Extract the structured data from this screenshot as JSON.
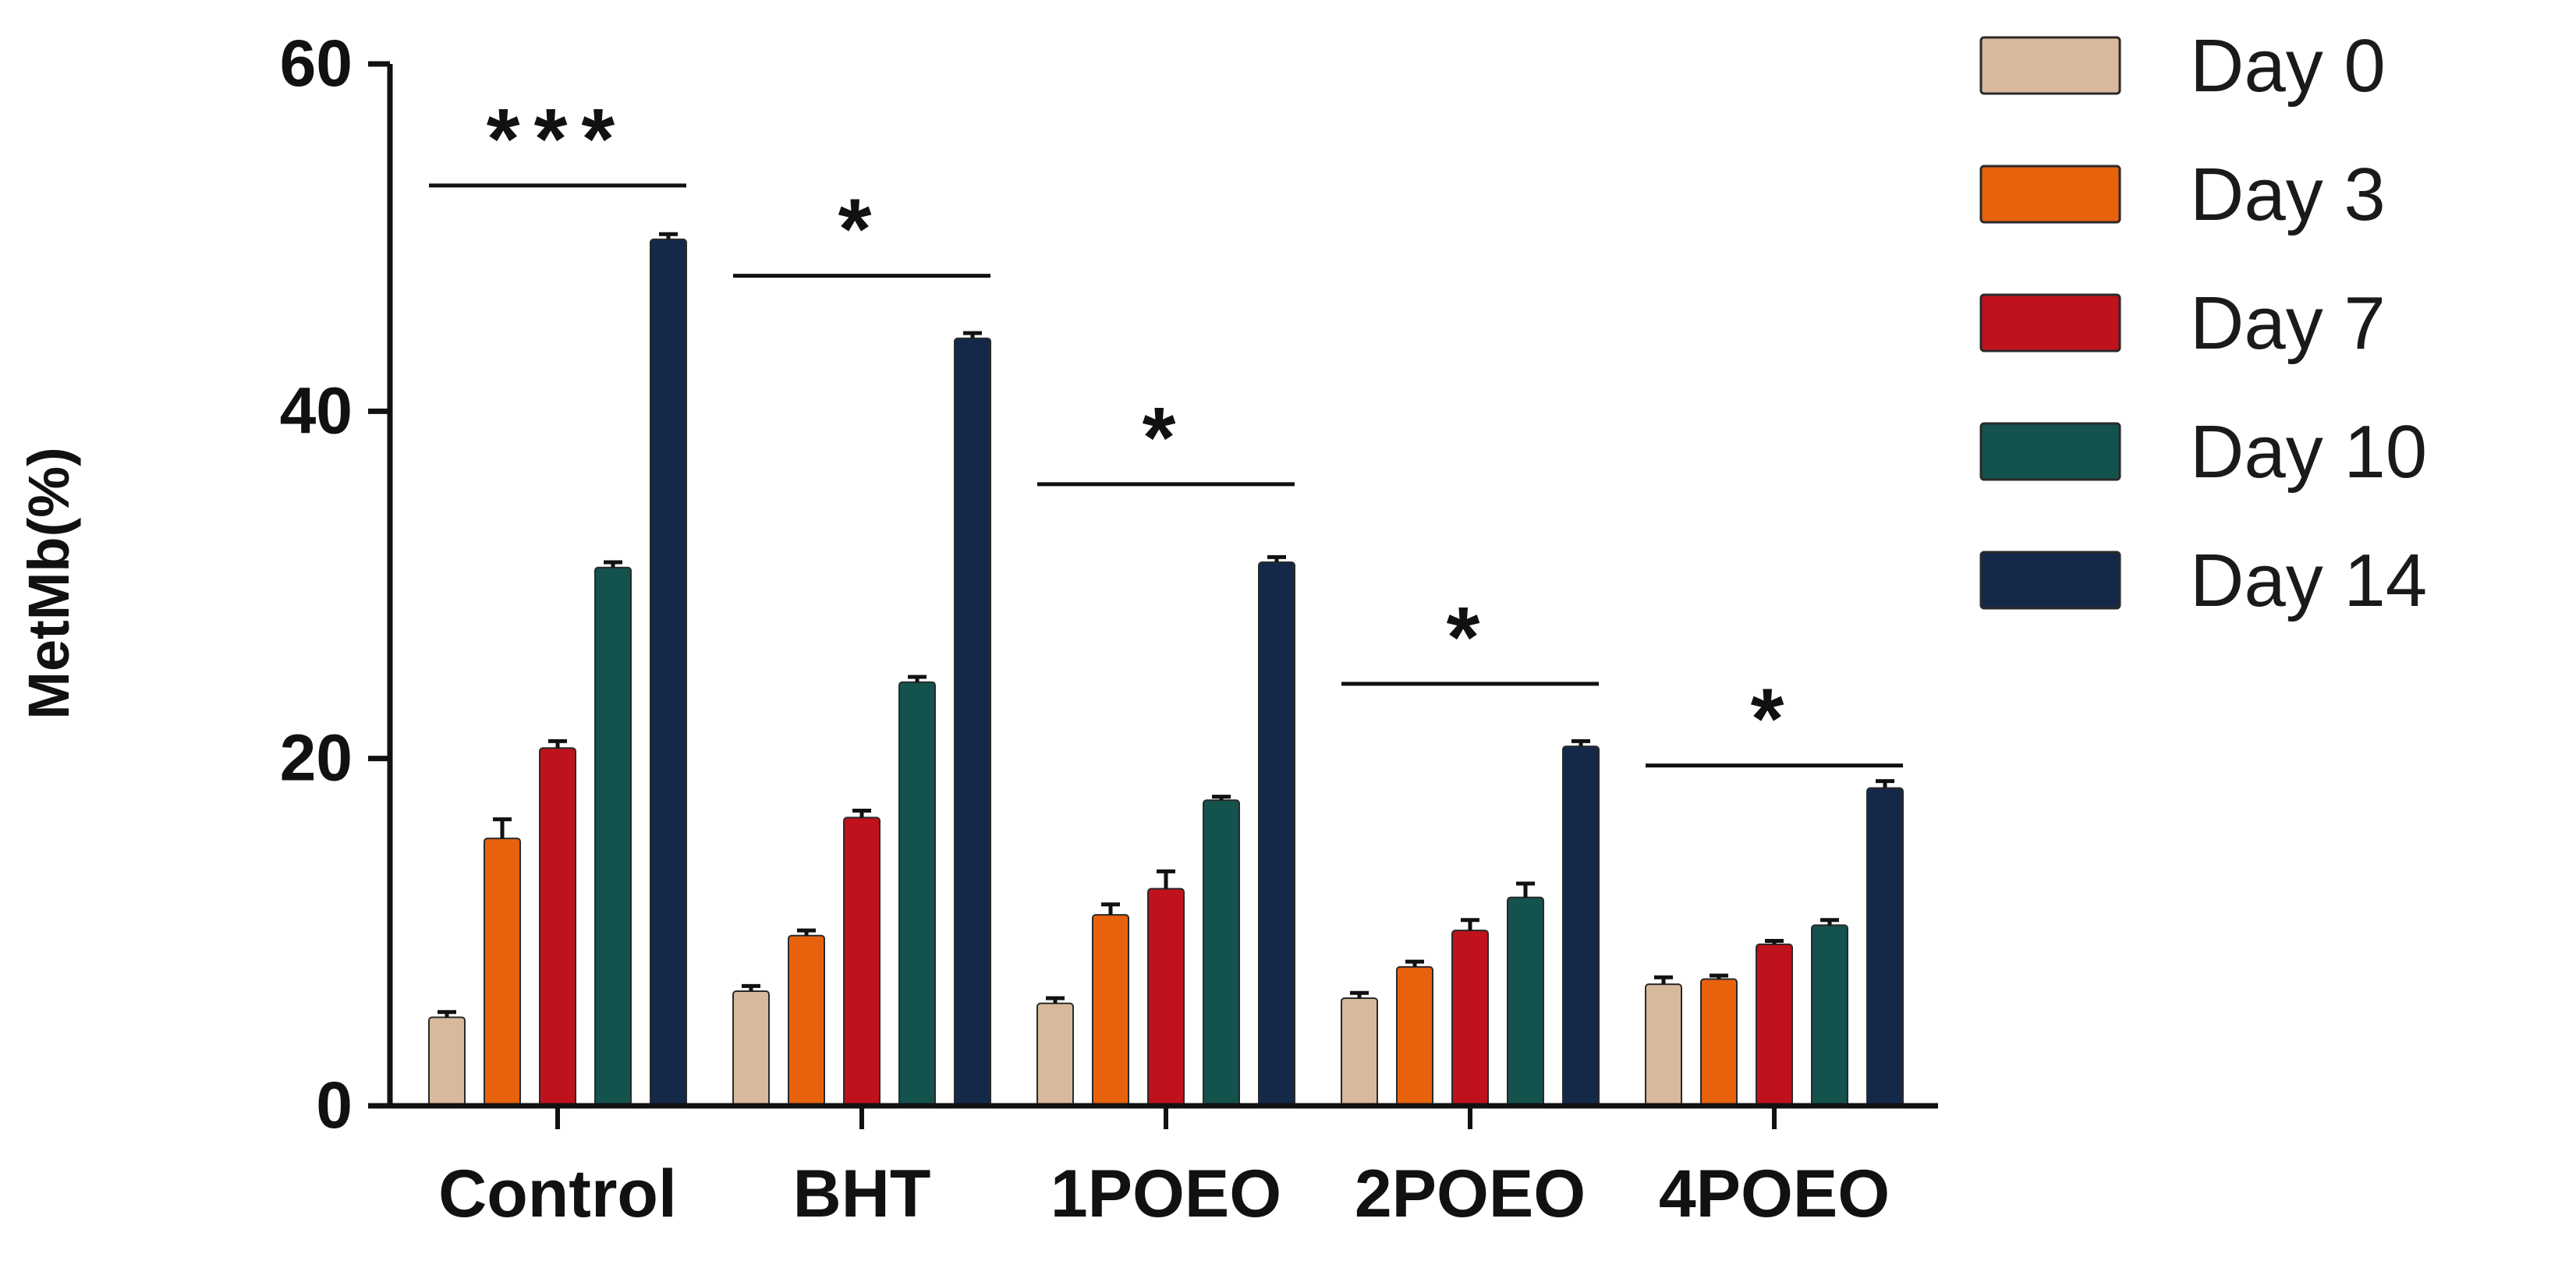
{
  "chart_data": {
    "type": "bar",
    "ylabel": "MetMb(%)",
    "xlabel": "",
    "ylim": [
      0,
      60
    ],
    "yticks": [
      "0",
      "20",
      "40",
      "60"
    ],
    "categories": [
      "Control",
      "BHT",
      "1POEO",
      "2POEO",
      "4POEO"
    ],
    "series": [
      {
        "name": "Day 0",
        "color": "#d9b99b",
        "values": [
          5.1,
          6.6,
          5.9,
          6.2,
          7.0
        ],
        "errors": [
          0.3,
          0.3,
          0.3,
          0.3,
          0.4
        ]
      },
      {
        "name": "Day 3",
        "color": "#e8620e",
        "values": [
          15.4,
          9.8,
          11.0,
          8.0,
          7.3
        ],
        "errors": [
          1.1,
          0.3,
          0.6,
          0.3,
          0.2
        ]
      },
      {
        "name": "Day 7",
        "color": "#c0121c",
        "values": [
          20.6,
          16.6,
          12.5,
          10.1,
          9.3
        ],
        "errors": [
          0.4,
          0.4,
          1.0,
          0.6,
          0.2
        ]
      },
      {
        "name": "Day 10",
        "color": "#14524e",
        "values": [
          31.0,
          24.4,
          17.6,
          12.0,
          10.4
        ],
        "errors": [
          0.3,
          0.3,
          0.2,
          0.8,
          0.3
        ]
      },
      {
        "name": "Day 14",
        "color": "#14294a",
        "values": [
          49.9,
          44.2,
          31.3,
          20.7,
          18.3
        ],
        "errors": [
          0.3,
          0.3,
          0.3,
          0.3,
          0.4
        ]
      }
    ],
    "significance": [
      {
        "category": "Control",
        "label": "***",
        "level": 53.0
      },
      {
        "category": "BHT",
        "label": "*",
        "level": 47.8
      },
      {
        "category": "1POEO",
        "label": "*",
        "level": 35.8
      },
      {
        "category": "2POEO",
        "label": "*",
        "level": 24.3
      },
      {
        "category": "4POEO",
        "label": "*",
        "level": 19.6
      }
    ],
    "legend_position": "top-right",
    "grid": false
  }
}
